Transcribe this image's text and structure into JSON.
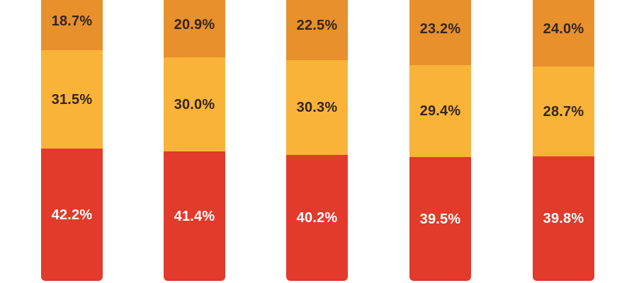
{
  "chart_data": {
    "type": "bar",
    "stacked": true,
    "orientation": "vertical",
    "bar_count": 5,
    "title": "",
    "xlabel": "",
    "ylabel": "",
    "grid": false,
    "legend": false,
    "axes_visible": false,
    "category_labels_visible": false,
    "crop_note": "bars are cropped at the top edge of the image; rounded bar bottoms end just above the bottom edge",
    "background_color": "#FFFFFF",
    "series": [
      {
        "name": "top-orange-segment",
        "color": "#E8902C",
        "label_color": "#33261A",
        "values": [
          18.7,
          20.9,
          22.5,
          23.2,
          24.0
        ],
        "labels": [
          "18.7%",
          "20.9%",
          "22.5%",
          "23.2%",
          "24.0%"
        ]
      },
      {
        "name": "middle-amber-segment",
        "color": "#F9B338",
        "label_color": "#33261A",
        "values": [
          31.5,
          30.0,
          30.3,
          29.4,
          28.7
        ],
        "labels": [
          "31.5%",
          "30.0%",
          "30.3%",
          "29.4%",
          "28.7%"
        ]
      },
      {
        "name": "bottom-red-segment",
        "color": "#E23A2B",
        "label_color": "#FFFFFF",
        "values": [
          42.2,
          41.4,
          40.2,
          39.5,
          39.8
        ],
        "labels": [
          "42.2%",
          "41.4%",
          "40.2%",
          "39.5%",
          "39.8%"
        ]
      }
    ]
  }
}
